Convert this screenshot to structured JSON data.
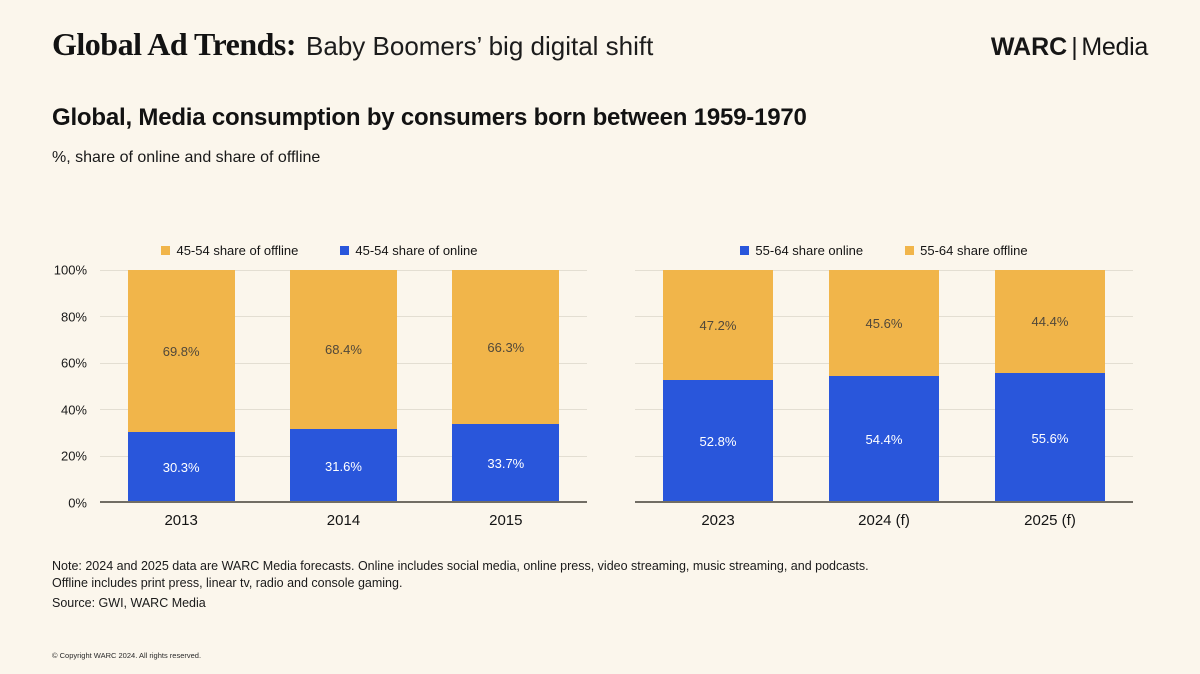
{
  "header": {
    "title_serif": "Global Ad Trends:",
    "title_sans": "Baby Boomers’ big digital shift",
    "brand": "WARC",
    "brand_divider": "|",
    "brand_suffix": "Media"
  },
  "section": {
    "title": "Global, Media consumption by consumers born between 1959-1970",
    "subtitle": "%, share of online and share of offline"
  },
  "colors": {
    "background": "#FBF6EC",
    "online_blue": "#2956DB",
    "offline_yellow": "#F1B54A"
  },
  "chart_data": [
    {
      "type": "bar",
      "stacked": true,
      "title": "45-54 media consumption share",
      "categories": [
        "2013",
        "2014",
        "2015"
      ],
      "series": [
        {
          "name": "45-54 share of online",
          "color": "#2956DB",
          "label_color": "#FFFFFF",
          "values": [
            30.3,
            31.6,
            33.7
          ]
        },
        {
          "name": "45-54 share of offline",
          "color": "#F1B54A",
          "label_color": "#51483A",
          "values": [
            69.8,
            68.4,
            66.3
          ]
        }
      ],
      "legend": [
        {
          "label": "45-54 share of offline",
          "color": "#F1B54A"
        },
        {
          "label": "45-54 share of online",
          "color": "#2956DB"
        }
      ],
      "ylim": [
        0,
        100
      ],
      "yticks": [
        "0%",
        "20%",
        "40%",
        "60%",
        "80%",
        "100%"
      ],
      "show_y_axis": true,
      "grid": true,
      "legend_position": "top"
    },
    {
      "type": "bar",
      "stacked": true,
      "title": "55-64 media consumption share",
      "categories": [
        "2023",
        "2024 (f)",
        "2025 (f)"
      ],
      "series": [
        {
          "name": "55-64 share online",
          "color": "#2956DB",
          "label_color": "#FFFFFF",
          "values": [
            52.8,
            54.4,
            55.6
          ]
        },
        {
          "name": "55-64 share offline",
          "color": "#F1B54A",
          "label_color": "#51483A",
          "values": [
            47.2,
            45.6,
            44.4
          ]
        }
      ],
      "legend": [
        {
          "label": "55-64 share online",
          "color": "#2956DB"
        },
        {
          "label": "55-64 share offline",
          "color": "#F1B54A"
        }
      ],
      "ylim": [
        0,
        100
      ],
      "yticks": [
        "0%",
        "20%",
        "40%",
        "60%",
        "80%",
        "100%"
      ],
      "show_y_axis": false,
      "grid": true,
      "legend_position": "top"
    }
  ],
  "note": {
    "line1": "Note: 2024 and 2025 data are WARC Media forecasts. Online includes social media, online press, video streaming, music streaming, and podcasts.",
    "line2": "Offline includes print press, linear tv, radio and console gaming."
  },
  "source": "Source: GWI, WARC Media",
  "copyright": "© Copyright WARC 2024. All rights reserved."
}
